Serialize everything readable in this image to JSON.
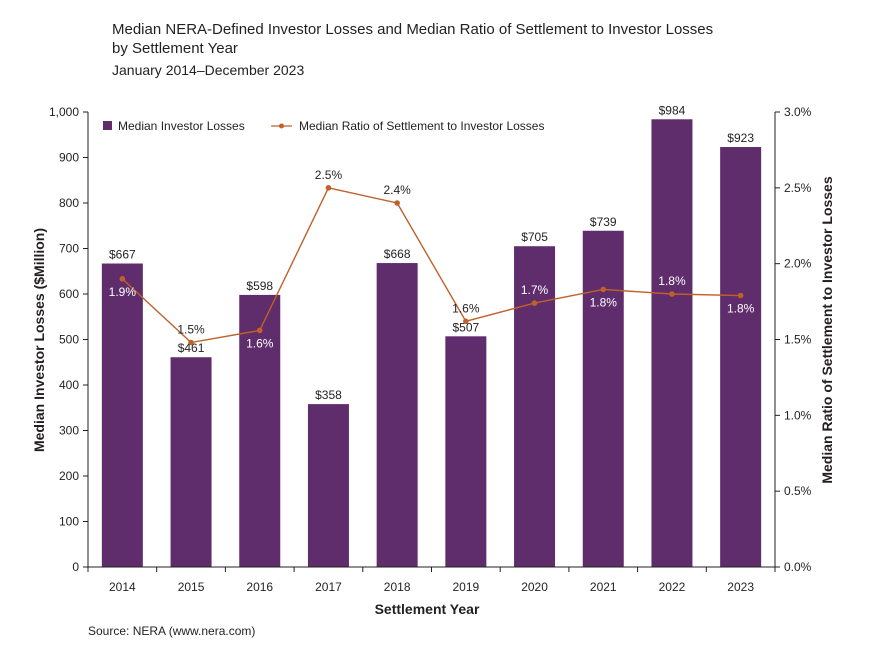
{
  "title_line1": "Median NERA-Defined Investor Losses and Median Ratio of Settlement to Investor Losses",
  "title_line2": "by Settlement Year",
  "subtitle": "January 2014–December 2023",
  "source": "Source: NERA (www.nera.com)",
  "colors": {
    "bar": "#5f2d6b",
    "line": "#c0602a",
    "text": "#231f20"
  },
  "chart_data": {
    "type": "bar",
    "xlabel": "Settlement Year",
    "ylabel": "Median Investor Losses ($Million)",
    "y2label": "Median Ratio of Settlement to Investor Losses",
    "categories": [
      "2014",
      "2015",
      "2016",
      "2017",
      "2018",
      "2019",
      "2020",
      "2021",
      "2022",
      "2023"
    ],
    "ylim": [
      0,
      1000
    ],
    "y2lim": [
      0,
      3.0
    ],
    "yticks": [
      "0",
      "100",
      "200",
      "300",
      "400",
      "500",
      "600",
      "700",
      "800",
      "900",
      "1,000"
    ],
    "y2ticks": [
      "0.0%",
      "0.5%",
      "1.0%",
      "1.5%",
      "2.0%",
      "2.5%",
      "3.0%"
    ],
    "legend_position": "top-left",
    "series": [
      {
        "name": "Median Investor Losses",
        "type": "bar",
        "axis": "left",
        "values": [
          667,
          461,
          598,
          358,
          668,
          507,
          705,
          739,
          984,
          923
        ],
        "labels": [
          "$667",
          "$461",
          "$598",
          "$358",
          "$668",
          "$507",
          "$705",
          "$739",
          "$984",
          "$923"
        ]
      },
      {
        "name": "Median Ratio of Settlement to Investor Losses",
        "type": "line",
        "axis": "right",
        "values": [
          1.9,
          1.48,
          1.56,
          2.5,
          2.4,
          1.62,
          1.74,
          1.83,
          1.8,
          1.79
        ],
        "labels": [
          "1.9%",
          "1.5%",
          "1.6%",
          "2.5%",
          "2.4%",
          "1.6%",
          "1.7%",
          "1.8%",
          "1.8%",
          "1.8%"
        ]
      }
    ]
  }
}
